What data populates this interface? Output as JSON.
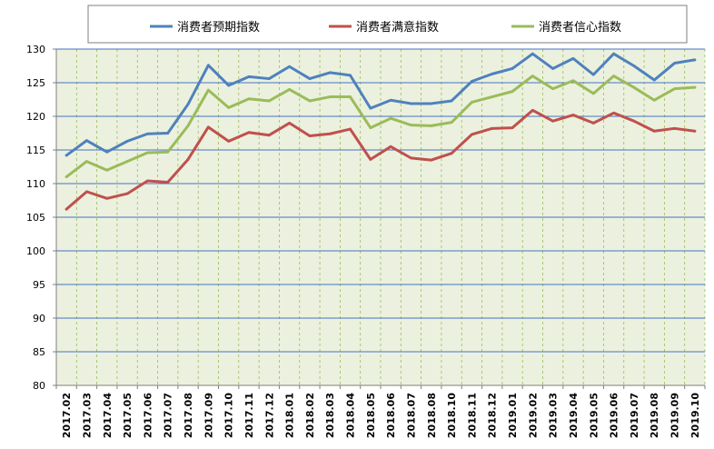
{
  "chart_data": {
    "type": "line",
    "title": "",
    "xlabel": "",
    "ylabel": "",
    "ylim": [
      80,
      130
    ],
    "yticks": [
      80,
      85,
      90,
      95,
      100,
      105,
      110,
      115,
      120,
      125,
      130
    ],
    "grid": true,
    "legend_position": "top",
    "plot_background": "#EBF1DE",
    "categories": [
      "2017.02",
      "2017.03",
      "2017.04",
      "2017.05",
      "2017.06",
      "2017.07",
      "2017.08",
      "2017.09",
      "2017.10",
      "2017.11",
      "2017.12",
      "2018.01",
      "2018.02",
      "2018.03",
      "2018.04",
      "2018.05",
      "2018.06",
      "2018.07",
      "2018.08",
      "2018.10",
      "2018.11",
      "2018.12",
      "2019.01",
      "2019.02",
      "2019.03",
      "2019.04",
      "2019.05",
      "2019.06",
      "2019.07",
      "2019.08",
      "2019.09",
      "2019.10"
    ],
    "series": [
      {
        "name": "消费者预期指数",
        "color": "#4F81BD",
        "values": [
          114.2,
          116.4,
          114.7,
          116.3,
          117.4,
          117.5,
          121.8,
          127.6,
          124.6,
          125.9,
          125.6,
          127.4,
          125.6,
          126.5,
          126.1,
          121.2,
          122.4,
          121.9,
          121.9,
          122.3,
          125.2,
          126.3,
          127.1,
          129.3,
          127.1,
          128.6,
          126.2,
          129.3,
          127.5,
          125.4,
          127.9,
          128.4
        ]
      },
      {
        "name": "消费者满意指数",
        "color": "#C0504D",
        "values": [
          106.2,
          108.8,
          107.8,
          108.5,
          110.4,
          110.2,
          113.6,
          118.4,
          116.3,
          117.6,
          117.2,
          119.0,
          117.1,
          117.4,
          118.1,
          113.6,
          115.5,
          113.8,
          113.5,
          114.5,
          117.3,
          118.2,
          118.3,
          120.9,
          119.3,
          120.2,
          119.0,
          120.5,
          119.3,
          117.8,
          118.2,
          117.8
        ]
      },
      {
        "name": "消费者信心指数",
        "color": "#9BBB59",
        "values": [
          111.0,
          113.3,
          112.0,
          113.3,
          114.6,
          114.7,
          118.6,
          123.9,
          121.3,
          122.6,
          122.3,
          124.0,
          122.3,
          122.9,
          122.9,
          118.3,
          119.7,
          118.7,
          118.6,
          119.1,
          122.1,
          122.9,
          123.7,
          126.0,
          124.1,
          125.3,
          123.4,
          126.0,
          124.3,
          122.4,
          124.1,
          124.3
        ]
      }
    ]
  }
}
